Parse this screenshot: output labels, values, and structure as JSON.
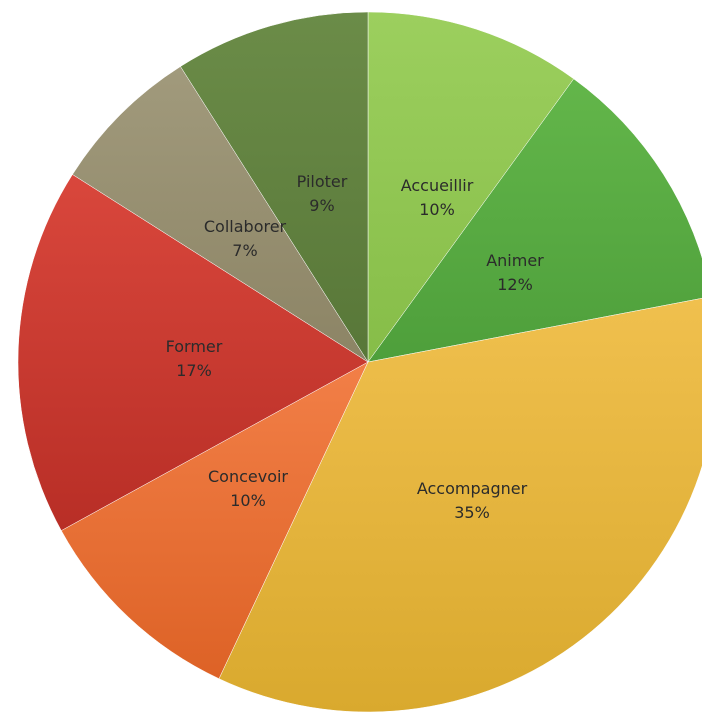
{
  "chart_data": {
    "type": "pie",
    "start_angle_deg": 0,
    "direction": "clockwise",
    "slices": [
      {
        "label": "Accueillir",
        "percent_label": "10%",
        "value": 10,
        "color_light": "#9ccf5e",
        "color_dark": "#86bd48"
      },
      {
        "label": "Animer",
        "percent_label": "12%",
        "value": 12,
        "color_light": "#63b64a",
        "color_dark": "#4e9f3b"
      },
      {
        "label": "Accompagner",
        "percent_label": "35%",
        "value": 35,
        "color_light": "#f0c04e",
        "color_dark": "#d9a92e"
      },
      {
        "label": "Concevoir",
        "percent_label": "10%",
        "value": 10,
        "color_light": "#f27f47",
        "color_dark": "#dd6226"
      },
      {
        "label": "Former",
        "percent_label": "17%",
        "value": 17,
        "color_light": "#d9473c",
        "color_dark": "#b82e26"
      },
      {
        "label": "Collaborer",
        "percent_label": "7%",
        "value": 7,
        "color_light": "#a19a7c",
        "color_dark": "#8c8465"
      },
      {
        "label": "Piloter",
        "percent_label": "9%",
        "value": 9,
        "color_light": "#6b8c48",
        "color_dark": "#587738"
      }
    ]
  }
}
